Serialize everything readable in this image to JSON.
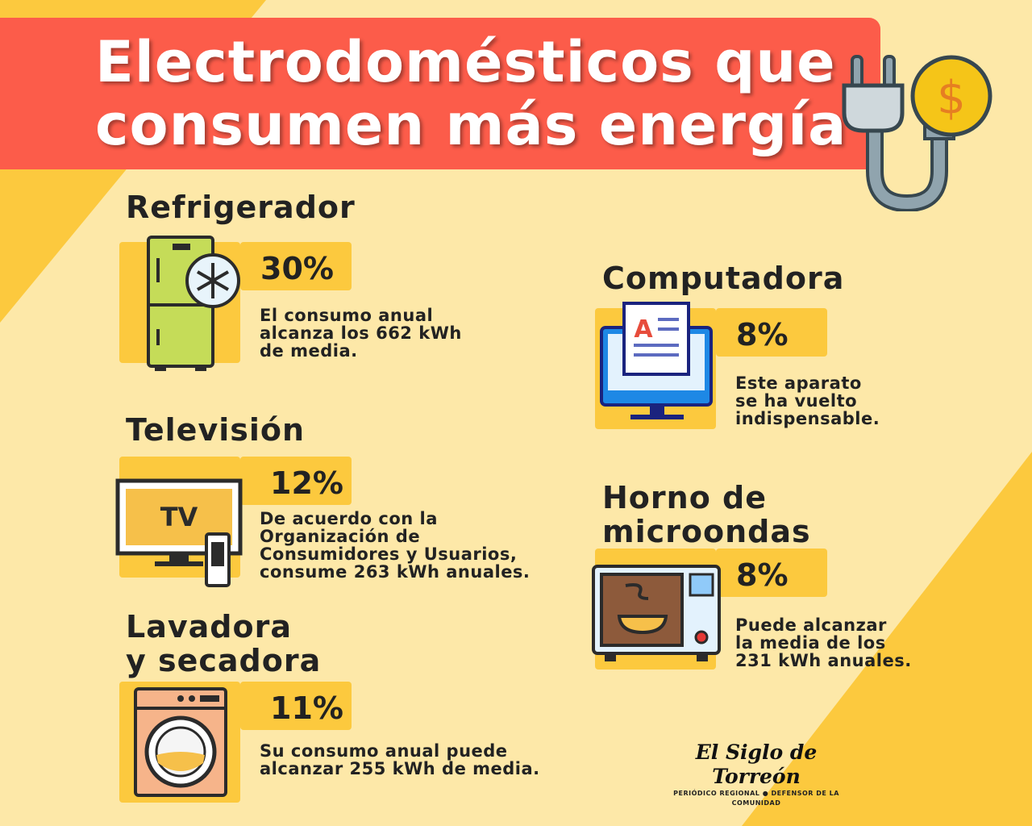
{
  "title": {
    "line1": "Electrodomésticos que",
    "line2": "consumen más energía"
  },
  "colors": {
    "background": "#fde8a8",
    "banner": "#fc5c4a",
    "accent": "#fcc93e"
  },
  "appliances": [
    {
      "name": "Refrigerador",
      "percent": "30%",
      "desc": [
        "El consumo anual",
        "alcanza los 662 kWh",
        "de media."
      ],
      "icon": "refrigerator-icon"
    },
    {
      "name": "Televisión",
      "percent": "12%",
      "desc": [
        "De acuerdo con la",
        "Organización de",
        "Consumidores y Usuarios,",
        "consume 263 kWh anuales."
      ],
      "icon": "tv-icon",
      "icon_text": "TV"
    },
    {
      "name": [
        "Lavadora",
        "y secadora"
      ],
      "percent": "11%",
      "desc": [
        "Su consumo anual puede",
        "alcanzar 255 kWh de media."
      ],
      "icon": "washing-machine-icon"
    },
    {
      "name": "Computadora",
      "percent": "8%",
      "desc": [
        "Este aparato",
        "se ha vuelto",
        "indispensable."
      ],
      "icon": "computer-icon"
    },
    {
      "name": [
        "Horno de",
        "microondas"
      ],
      "percent": "8%",
      "desc": [
        "Puede alcanzar",
        "la media de los",
        "231 kWh anuales."
      ],
      "icon": "microwave-icon"
    }
  ],
  "logo": {
    "name": "El Siglo de Torreón",
    "tag_left": "PERIÓDICO REGIONAL",
    "tag_right": "DEFENSOR DE LA COMUNIDAD"
  }
}
